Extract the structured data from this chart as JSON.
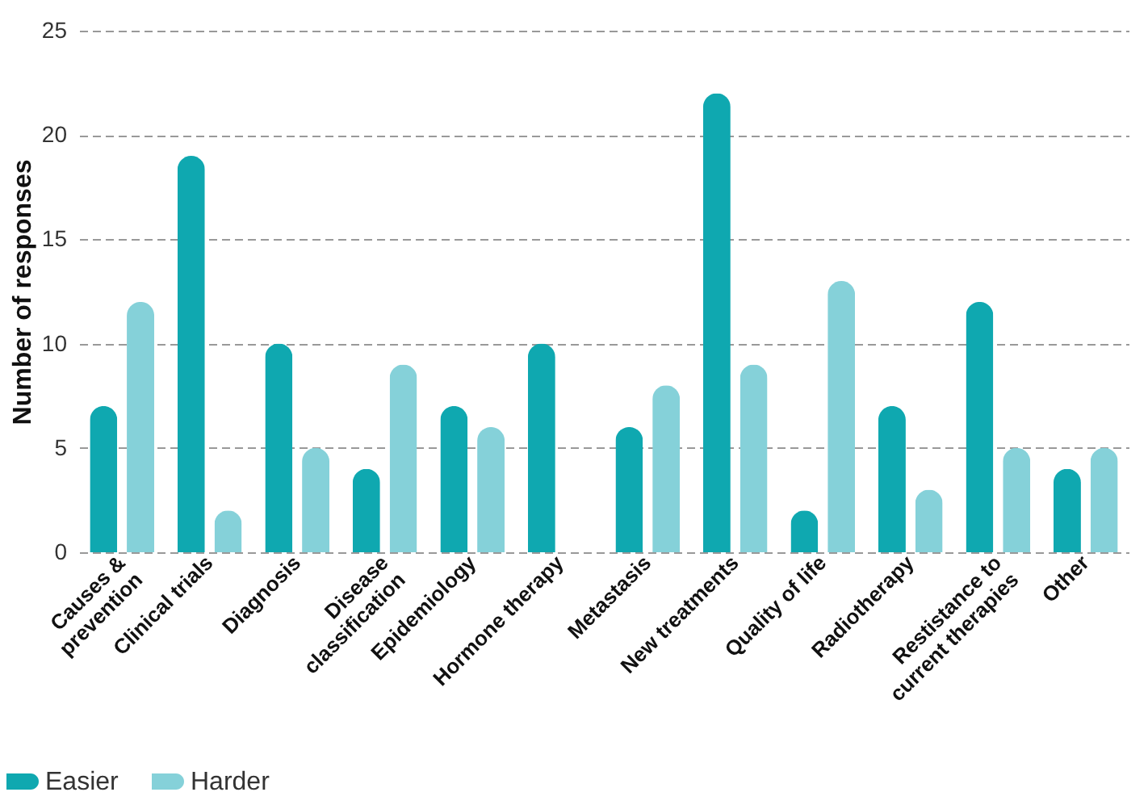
{
  "chart_data": {
    "type": "bar",
    "ylabel": "Number of responses",
    "categories": [
      "Causes &\nprevention",
      "Clinical trials",
      "Diagnosis",
      "Disease\nclassification",
      "Epidemiology",
      "Hormone therapy",
      "Metastasis",
      "New treatments",
      "Quality of life",
      "Radiotherapy",
      "Restistance to\ncurrent therapies",
      "Other"
    ],
    "series": [
      {
        "name": "Easier",
        "color": "#0fa8b0",
        "values": [
          7,
          19,
          10,
          4,
          7,
          10,
          6,
          22,
          2,
          7,
          12,
          4
        ]
      },
      {
        "name": "Harder",
        "color": "#85d1d9",
        "values": [
          12,
          2,
          5,
          9,
          6,
          0,
          8,
          9,
          13,
          3,
          5,
          5
        ]
      }
    ],
    "ylim": [
      0,
      25
    ],
    "yticks": [
      0,
      5,
      10,
      15,
      20,
      25
    ],
    "grid": "y",
    "legend": "bottom left"
  }
}
